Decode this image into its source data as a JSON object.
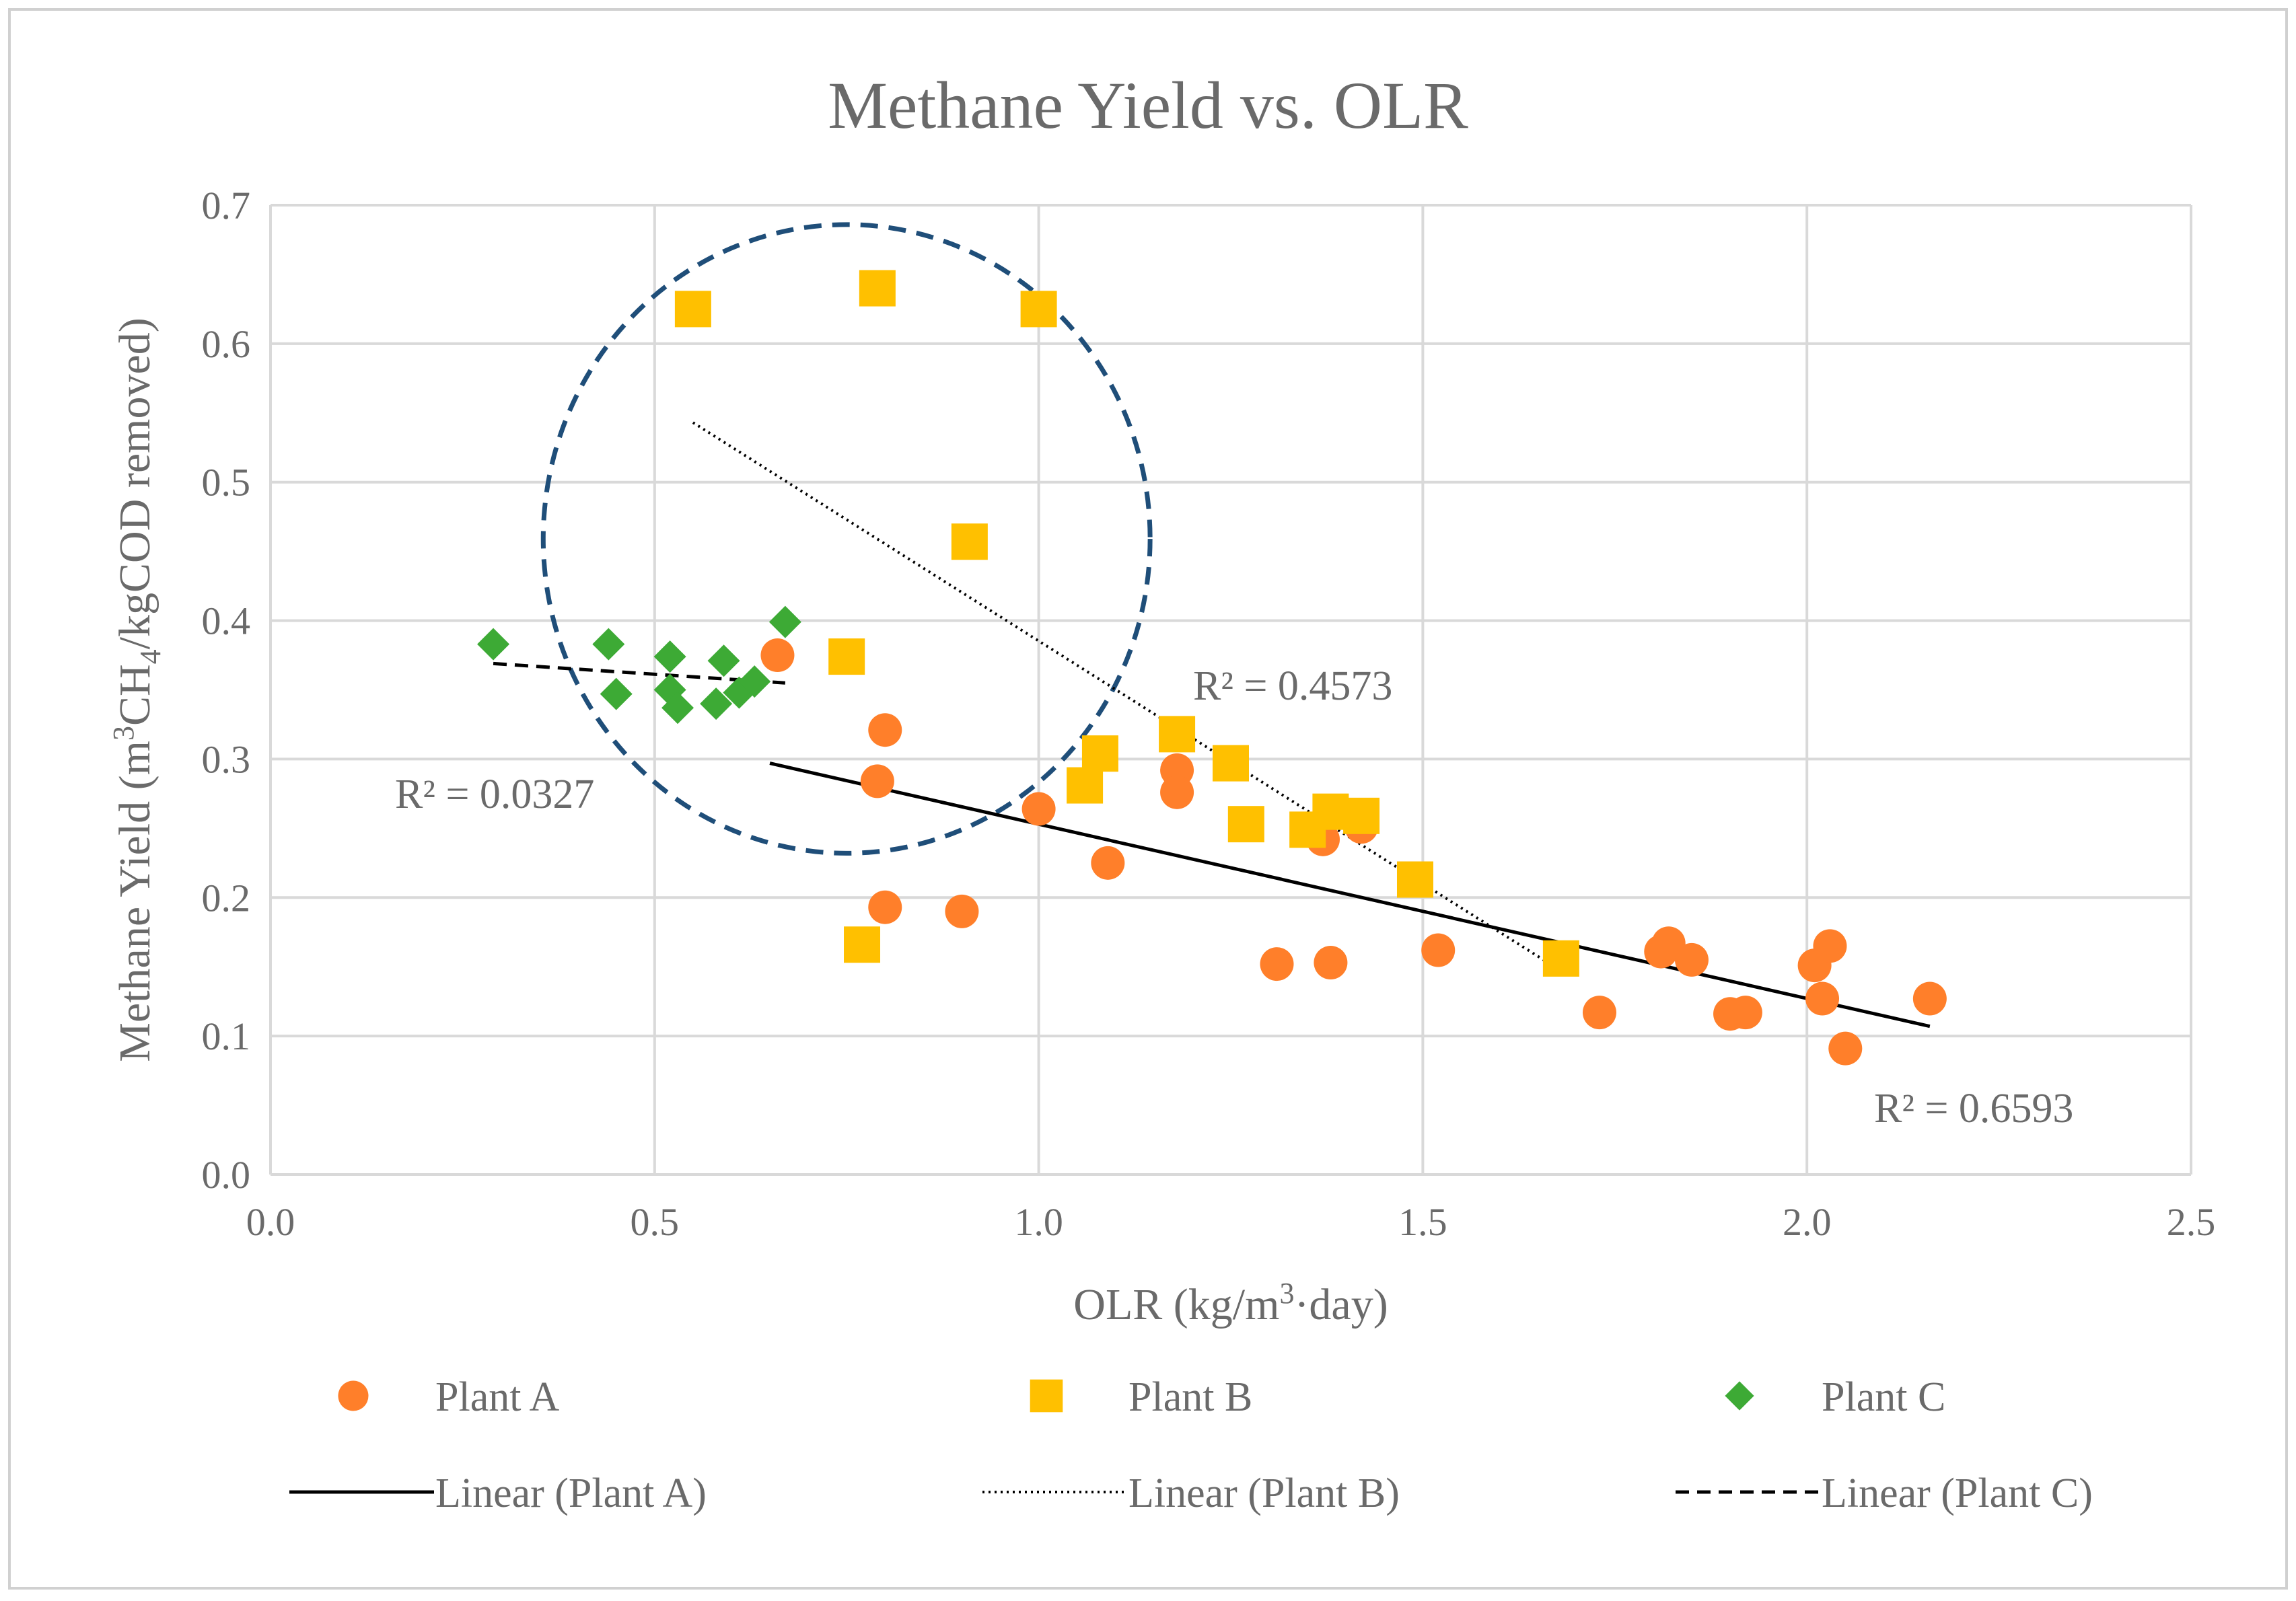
{
  "colors": {
    "plant_a": "#FF7F2A",
    "plant_b": "#FFC000",
    "plant_c": "#3DAA35",
    "circle": "#1F4E79",
    "grid": "#D9D9D9",
    "trend": "#000000"
  },
  "chart_data": {
    "type": "scatter",
    "title": "Methane Yield vs. OLR",
    "xlabel_parts": [
      "OLR (kg/m",
      "3",
      "·day)"
    ],
    "ylabel_parts": [
      "Methane Yield (m",
      "3",
      "CH",
      "4",
      "/kgCOD removed)"
    ],
    "xlim": [
      0.0,
      2.5
    ],
    "ylim": [
      0.0,
      0.7
    ],
    "x_ticks": [
      "0.0",
      "0.5",
      "1.0",
      "1.5",
      "2.0",
      "2.5"
    ],
    "y_ticks": [
      "0.0",
      "0.1",
      "0.2",
      "0.3",
      "0.4",
      "0.5",
      "0.6",
      "0.7"
    ],
    "grid": true,
    "legend_position": "bottom",
    "series": [
      {
        "name": "Plant A",
        "marker": "circle",
        "color": "#FF7F2A",
        "points": [
          [
            0.66,
            0.375
          ],
          [
            0.8,
            0.321
          ],
          [
            0.79,
            0.284
          ],
          [
            0.8,
            0.193
          ],
          [
            0.9,
            0.19
          ],
          [
            1.0,
            0.264
          ],
          [
            1.09,
            0.225
          ],
          [
            1.18,
            0.292
          ],
          [
            1.18,
            0.276
          ],
          [
            1.31,
            0.152
          ],
          [
            1.37,
            0.242
          ],
          [
            1.38,
            0.153
          ],
          [
            1.42,
            0.251
          ],
          [
            1.52,
            0.162
          ],
          [
            1.73,
            0.117
          ],
          [
            1.81,
            0.161
          ],
          [
            1.82,
            0.167
          ],
          [
            1.85,
            0.155
          ],
          [
            1.9,
            0.116
          ],
          [
            1.92,
            0.117
          ],
          [
            2.01,
            0.151
          ],
          [
            2.02,
            0.127
          ],
          [
            2.03,
            0.165
          ],
          [
            2.05,
            0.091
          ],
          [
            2.16,
            0.127
          ]
        ]
      },
      {
        "name": "Plant B",
        "marker": "square",
        "color": "#FFC000",
        "points": [
          [
            0.55,
            0.625
          ],
          [
            0.79,
            0.64
          ],
          [
            1.0,
            0.625
          ],
          [
            0.91,
            0.457
          ],
          [
            0.75,
            0.374
          ],
          [
            0.77,
            0.166
          ],
          [
            1.06,
            0.281
          ],
          [
            1.08,
            0.304
          ],
          [
            1.18,
            0.318
          ],
          [
            1.25,
            0.297
          ],
          [
            1.27,
            0.253
          ],
          [
            1.35,
            0.249
          ],
          [
            1.38,
            0.262
          ],
          [
            1.42,
            0.259
          ],
          [
            1.49,
            0.213
          ],
          [
            1.68,
            0.156
          ]
        ]
      },
      {
        "name": "Plant C",
        "marker": "diamond",
        "color": "#3DAA35",
        "points": [
          [
            0.29,
            0.383
          ],
          [
            0.44,
            0.383
          ],
          [
            0.45,
            0.347
          ],
          [
            0.52,
            0.374
          ],
          [
            0.52,
            0.35
          ],
          [
            0.53,
            0.337
          ],
          [
            0.58,
            0.34
          ],
          [
            0.59,
            0.371
          ],
          [
            0.61,
            0.348
          ],
          [
            0.63,
            0.356
          ],
          [
            0.67,
            0.399
          ]
        ]
      }
    ],
    "trendlines": [
      {
        "name": "Linear (Plant A)",
        "style": "solid",
        "from": [
          0.65,
          0.297
        ],
        "to": [
          2.16,
          0.107
        ],
        "r2": "R² = 0.6593"
      },
      {
        "name": "Linear (Plant B)",
        "style": "dotted",
        "from": [
          0.55,
          0.543
        ],
        "to": [
          1.68,
          0.147
        ],
        "r2": "R² = 0.4573"
      },
      {
        "name": "Linear (Plant C)",
        "style": "dashed",
        "from": [
          0.29,
          0.369
        ],
        "to": [
          0.67,
          0.355
        ],
        "r2": "R² = 0.0327"
      }
    ],
    "annotation_ellipse": {
      "center": [
        0.75,
        0.459
      ],
      "rx_data": 0.395,
      "ry_data": 0.227,
      "style": "dashed"
    },
    "legend": [
      {
        "label": "Plant A",
        "kind": "marker",
        "marker": "circle"
      },
      {
        "label": "Plant B",
        "kind": "marker",
        "marker": "square"
      },
      {
        "label": "Plant C",
        "kind": "marker",
        "marker": "diamond"
      },
      {
        "label": "Linear (Plant A)",
        "kind": "line",
        "style": "solid"
      },
      {
        "label": "Linear (Plant B)",
        "kind": "line",
        "style": "dotted"
      },
      {
        "label": "Linear (Plant C)",
        "kind": "line",
        "style": "dashed"
      }
    ]
  }
}
